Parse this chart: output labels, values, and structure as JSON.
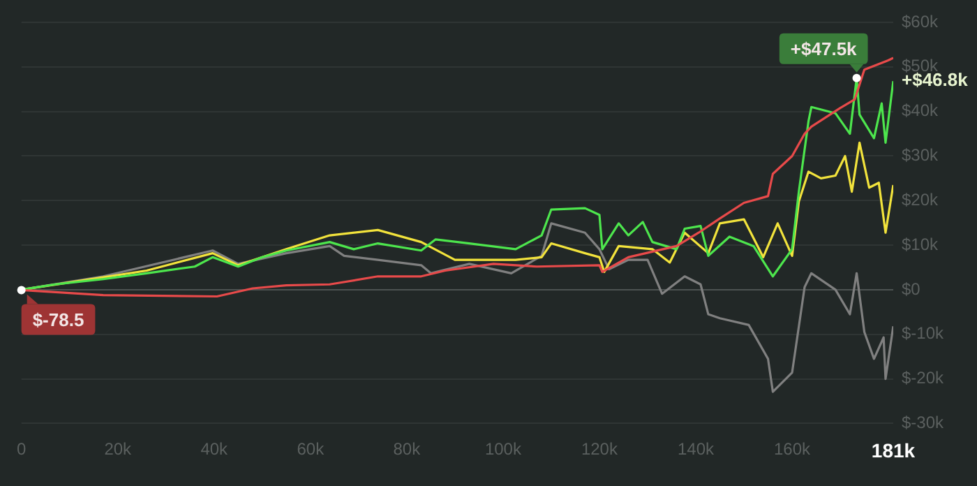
{
  "chart_data": {
    "type": "line",
    "xlim": [
      0,
      181000
    ],
    "ylim": [
      -30000,
      60000
    ],
    "xticks": [
      0,
      {
        "value": 20000,
        "label": "20k"
      },
      {
        "value": 40000,
        "label": "40k"
      },
      {
        "value": 60000,
        "label": "60k"
      },
      {
        "value": 80000,
        "label": "80k"
      },
      {
        "value": 100000,
        "label": "100k"
      },
      {
        "value": 120000,
        "label": "120k"
      },
      {
        "value": 140000,
        "label": "140k"
      },
      {
        "value": 160000,
        "label": "160k"
      },
      {
        "value": 181000,
        "label": "181k"
      }
    ],
    "yticks": [
      {
        "value": -30000,
        "label": "$-30k"
      },
      {
        "value": -20000,
        "label": "$-20k"
      },
      {
        "value": -10000,
        "label": "$-10k"
      },
      {
        "value": 0,
        "label": "$0"
      },
      {
        "value": 10000,
        "label": "$10k"
      },
      {
        "value": 20000,
        "label": "$20k"
      },
      {
        "value": 30000,
        "label": "$30k"
      },
      {
        "value": 40000,
        "label": "$40k"
      },
      {
        "value": 50000,
        "label": "$50k"
      },
      {
        "value": 60000,
        "label": "$60k"
      }
    ],
    "grid": "y",
    "marker": "none",
    "line_style": "solid",
    "series": [
      {
        "color": "#808080",
        "x": [
          0,
          17000,
          39700,
          45000,
          55000,
          64000,
          67000,
          74000,
          83000,
          85000,
          93000,
          101700,
          108000,
          110000,
          117000,
          120000,
          122000,
          126000,
          130000,
          133000,
          137700,
          141000,
          142600,
          145000,
          151000,
          155000,
          156000,
          160000,
          162600,
          164000,
          169000,
          172000,
          173400,
          175000,
          177000,
          179000,
          179400,
          181000
        ],
        "values": [
          0,
          3000,
          8800,
          5800,
          8200,
          9800,
          7600,
          6700,
          5500,
          3700,
          5800,
          3700,
          7600,
          14900,
          12800,
          9100,
          4600,
          6700,
          6700,
          -900,
          3000,
          1200,
          -5500,
          -6400,
          -7900,
          -15500,
          -22900,
          -18600,
          600,
          3700,
          0,
          -5500,
          3700,
          -9500,
          -15500,
          -10700,
          -20000,
          -8200
        ]
      },
      {
        "color": "#f2e33c",
        "x": [
          0,
          17000,
          26000,
          39700,
          45000,
          55000,
          64000,
          74000,
          83000,
          90000,
          98000,
          102600,
          108000,
          110000,
          117000,
          120000,
          121000,
          124000,
          131000,
          134600,
          137700,
          142600,
          145000,
          150000,
          154000,
          157000,
          160000,
          161400,
          163400,
          166000,
          169000,
          171000,
          172400,
          174000,
          176000,
          178000,
          179400,
          181000
        ],
        "values": [
          0,
          2800,
          4300,
          8200,
          5500,
          9100,
          12200,
          13400,
          10700,
          6700,
          6700,
          6700,
          7300,
          10400,
          8200,
          7300,
          4000,
          9800,
          9100,
          6100,
          12800,
          8200,
          14900,
          15800,
          7300,
          14900,
          7600,
          19800,
          26500,
          25000,
          25600,
          30000,
          22000,
          33000,
          22900,
          24000,
          12800,
          23500
        ]
      },
      {
        "color": "#4de64d",
        "x": [
          0,
          7000,
          17000,
          26000,
          36000,
          39700,
          45000,
          50000,
          55000,
          64000,
          69000,
          74000,
          83000,
          86000,
          93000,
          102600,
          108000,
          110000,
          117000,
          120000,
          120600,
          124000,
          126000,
          129000,
          131000,
          136000,
          137700,
          141000,
          142600,
          147000,
          152000,
          156000,
          160000,
          161400,
          163400,
          164000,
          169000,
          172000,
          173400,
          174000,
          177000,
          178600,
          179400,
          181000
        ],
        "values": [
          0,
          1200,
          2400,
          3700,
          5200,
          7300,
          5200,
          7300,
          8800,
          10700,
          9100,
          10400,
          8800,
          11300,
          10400,
          9100,
          12200,
          18000,
          18300,
          16800,
          9100,
          14900,
          12200,
          15200,
          10700,
          9100,
          13700,
          14300,
          7600,
          11900,
          9800,
          3000,
          9100,
          22000,
          37800,
          41000,
          39600,
          35000,
          47500,
          39300,
          34000,
          41800,
          33000,
          46800
        ]
      },
      {
        "color": "#e84a4a",
        "x": [
          0,
          17000,
          40600,
          48000,
          55000,
          64000,
          74000,
          83000,
          88000,
          98000,
          107000,
          120000,
          120600,
          126000,
          136000,
          140600,
          145000,
          150000,
          155000,
          156000,
          160000,
          162600,
          164000,
          170000,
          173000,
          175000,
          180000,
          181000
        ],
        "values": [
          -78.5,
          -1200,
          -1500,
          300,
          1000,
          1200,
          3000,
          3000,
          4300,
          5800,
          5200,
          5500,
          4000,
          7300,
          9800,
          12800,
          16000,
          19500,
          21000,
          26000,
          30000,
          35000,
          36600,
          40800,
          42700,
          49400,
          51500,
          52000
        ]
      }
    ],
    "annotations": [
      {
        "text": "$-78.5",
        "x": 0,
        "y": -78.5
      },
      {
        "text": "+$47.5k",
        "x": 173400,
        "y": 47500
      },
      {
        "text": "+$46.8k",
        "x": 181000,
        "y": 46800
      }
    ]
  }
}
